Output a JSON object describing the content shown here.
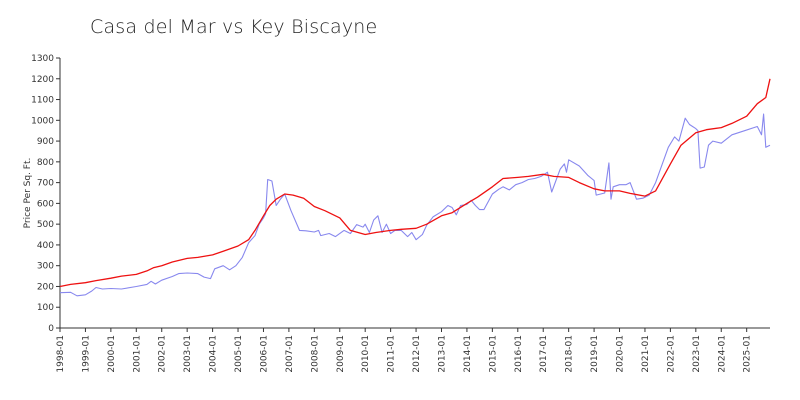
{
  "chart_data": {
    "type": "line",
    "title": "Casa del Mar vs Key Biscayne",
    "xlabel": "",
    "ylabel": "Price Per Sq. Ft.",
    "ylim": [
      0,
      1300
    ],
    "xlim": [
      "1998-01",
      "2025-12"
    ],
    "y_ticks": [
      0,
      100,
      200,
      300,
      400,
      500,
      600,
      700,
      800,
      900,
      1000,
      1100,
      1200,
      1300
    ],
    "x_ticks": [
      "1998-01",
      "1999-01",
      "2000-01",
      "2001-01",
      "2002-01",
      "2003-01",
      "2004-01",
      "2005-01",
      "2006-01",
      "2007-01",
      "2008-01",
      "2009-01",
      "2010-01",
      "2011-01",
      "2012-01",
      "2013-01",
      "2014-01",
      "2015-01",
      "2016-01",
      "2017-01",
      "2018-01",
      "2019-01",
      "2020-01",
      "2021-01",
      "2022-01",
      "2023-01",
      "2024-01",
      "2025-01"
    ],
    "grid": false,
    "legend": "none",
    "series": [
      {
        "color": "#8888ee",
        "points": [
          [
            "1998-01",
            170
          ],
          [
            "1998-06",
            172
          ],
          [
            "1998-09",
            155
          ],
          [
            "1999-01",
            160
          ],
          [
            "1999-04",
            178
          ],
          [
            "1999-06",
            195
          ],
          [
            "1999-09",
            188
          ],
          [
            "2000-01",
            190
          ],
          [
            "2000-06",
            188
          ],
          [
            "2001-01",
            200
          ],
          [
            "2001-06",
            210
          ],
          [
            "2001-08",
            225
          ],
          [
            "2001-10",
            212
          ],
          [
            "2002-01",
            230
          ],
          [
            "2002-06",
            248
          ],
          [
            "2002-09",
            262
          ],
          [
            "2003-01",
            265
          ],
          [
            "2003-06",
            262
          ],
          [
            "2003-09",
            245
          ],
          [
            "2003-12",
            238
          ],
          [
            "2004-02",
            285
          ],
          [
            "2004-06",
            300
          ],
          [
            "2004-09",
            280
          ],
          [
            "2004-12",
            300
          ],
          [
            "2005-03",
            340
          ],
          [
            "2005-06",
            410
          ],
          [
            "2005-09",
            445
          ],
          [
            "2005-11",
            500
          ],
          [
            "2006-01",
            530
          ],
          [
            "2006-02",
            550
          ],
          [
            "2006-03",
            715
          ],
          [
            "2006-05",
            708
          ],
          [
            "2006-07",
            590
          ],
          [
            "2006-09",
            620
          ],
          [
            "2006-11",
            645
          ],
          [
            "2007-02",
            565
          ],
          [
            "2007-06",
            470
          ],
          [
            "2007-09",
            468
          ],
          [
            "2008-01",
            462
          ],
          [
            "2008-03",
            470
          ],
          [
            "2008-04",
            445
          ],
          [
            "2008-08",
            455
          ],
          [
            "2008-11",
            440
          ],
          [
            "2009-03",
            470
          ],
          [
            "2009-06",
            455
          ],
          [
            "2009-09",
            498
          ],
          [
            "2009-12",
            486
          ],
          [
            "2010-01",
            500
          ],
          [
            "2010-03",
            460
          ],
          [
            "2010-05",
            520
          ],
          [
            "2010-07",
            540
          ],
          [
            "2010-09",
            460
          ],
          [
            "2010-11",
            500
          ],
          [
            "2011-01",
            455
          ],
          [
            "2011-03",
            470
          ],
          [
            "2011-06",
            470
          ],
          [
            "2011-09",
            440
          ],
          [
            "2011-11",
            460
          ],
          [
            "2012-01",
            425
          ],
          [
            "2012-04",
            450
          ],
          [
            "2012-06",
            495
          ],
          [
            "2012-09",
            535
          ],
          [
            "2013-01",
            560
          ],
          [
            "2013-04",
            590
          ],
          [
            "2013-06",
            580
          ],
          [
            "2013-08",
            545
          ],
          [
            "2013-10",
            590
          ],
          [
            "2014-01",
            595
          ],
          [
            "2014-03",
            615
          ],
          [
            "2014-05",
            590
          ],
          [
            "2014-07",
            570
          ],
          [
            "2014-09",
            570
          ],
          [
            "2015-01",
            645
          ],
          [
            "2015-04",
            668
          ],
          [
            "2015-06",
            680
          ],
          [
            "2015-09",
            665
          ],
          [
            "2015-12",
            690
          ],
          [
            "2016-03",
            700
          ],
          [
            "2016-06",
            715
          ],
          [
            "2016-09",
            720
          ],
          [
            "2016-12",
            730
          ],
          [
            "2017-03",
            750
          ],
          [
            "2017-05",
            655
          ],
          [
            "2017-09",
            765
          ],
          [
            "2017-11",
            790
          ],
          [
            "2017-12",
            750
          ],
          [
            "2018-01",
            810
          ],
          [
            "2018-06",
            780
          ],
          [
            "2018-10",
            735
          ],
          [
            "2019-01",
            710
          ],
          [
            "2019-02",
            640
          ],
          [
            "2019-06",
            650
          ],
          [
            "2019-08",
            795
          ],
          [
            "2019-09",
            620
          ],
          [
            "2019-10",
            680
          ],
          [
            "2020-01",
            690
          ],
          [
            "2020-04",
            690
          ],
          [
            "2020-06",
            700
          ],
          [
            "2020-09",
            620
          ],
          [
            "2020-12",
            625
          ],
          [
            "2021-03",
            640
          ],
          [
            "2021-06",
            700
          ],
          [
            "2021-12",
            870
          ],
          [
            "2022-03",
            920
          ],
          [
            "2022-05",
            900
          ],
          [
            "2022-08",
            1010
          ],
          [
            "2022-10",
            980
          ],
          [
            "2023-01",
            960
          ],
          [
            "2023-02",
            950
          ],
          [
            "2023-03",
            770
          ],
          [
            "2023-05",
            775
          ],
          [
            "2023-07",
            880
          ],
          [
            "2023-09",
            900
          ],
          [
            "2024-01",
            890
          ],
          [
            "2024-06",
            930
          ],
          [
            "2024-12",
            950
          ],
          [
            "2025-06",
            970
          ],
          [
            "2025-08",
            930
          ],
          [
            "2025-09",
            1030
          ],
          [
            "2025-10",
            870
          ],
          [
            "2025-12",
            880
          ]
        ]
      },
      {
        "color": "#ee1111",
        "points": [
          [
            "1998-01",
            200
          ],
          [
            "1998-06",
            210
          ],
          [
            "1999-01",
            218
          ],
          [
            "1999-06",
            228
          ],
          [
            "2000-01",
            240
          ],
          [
            "2000-06",
            250
          ],
          [
            "2001-01",
            258
          ],
          [
            "2001-06",
            275
          ],
          [
            "2001-09",
            290
          ],
          [
            "2002-01",
            300
          ],
          [
            "2002-06",
            318
          ],
          [
            "2003-01",
            335
          ],
          [
            "2003-06",
            340
          ],
          [
            "2004-01",
            352
          ],
          [
            "2004-06",
            370
          ],
          [
            "2005-01",
            395
          ],
          [
            "2005-06",
            425
          ],
          [
            "2005-09",
            470
          ],
          [
            "2006-01",
            540
          ],
          [
            "2006-04",
            590
          ],
          [
            "2006-07",
            620
          ],
          [
            "2006-11",
            645
          ],
          [
            "2007-03",
            640
          ],
          [
            "2007-08",
            625
          ],
          [
            "2008-01",
            585
          ],
          [
            "2008-06",
            565
          ],
          [
            "2009-01",
            530
          ],
          [
            "2009-06",
            470
          ],
          [
            "2010-01",
            450
          ],
          [
            "2010-06",
            460
          ],
          [
            "2011-01",
            470
          ],
          [
            "2011-06",
            475
          ],
          [
            "2012-01",
            480
          ],
          [
            "2012-06",
            500
          ],
          [
            "2013-01",
            540
          ],
          [
            "2013-06",
            555
          ],
          [
            "2014-01",
            600
          ],
          [
            "2014-06",
            630
          ],
          [
            "2015-01",
            680
          ],
          [
            "2015-06",
            720
          ],
          [
            "2016-01",
            725
          ],
          [
            "2016-06",
            730
          ],
          [
            "2017-01",
            740
          ],
          [
            "2017-06",
            730
          ],
          [
            "2018-01",
            725
          ],
          [
            "2018-06",
            700
          ],
          [
            "2019-01",
            670
          ],
          [
            "2019-06",
            660
          ],
          [
            "2020-01",
            660
          ],
          [
            "2020-06",
            648
          ],
          [
            "2021-01",
            635
          ],
          [
            "2021-06",
            660
          ],
          [
            "2022-01",
            790
          ],
          [
            "2022-06",
            880
          ],
          [
            "2023-01",
            940
          ],
          [
            "2023-06",
            955
          ],
          [
            "2024-01",
            965
          ],
          [
            "2024-06",
            985
          ],
          [
            "2025-01",
            1020
          ],
          [
            "2025-06",
            1080
          ],
          [
            "2025-10",
            1110
          ],
          [
            "2025-12",
            1200
          ]
        ]
      }
    ]
  }
}
